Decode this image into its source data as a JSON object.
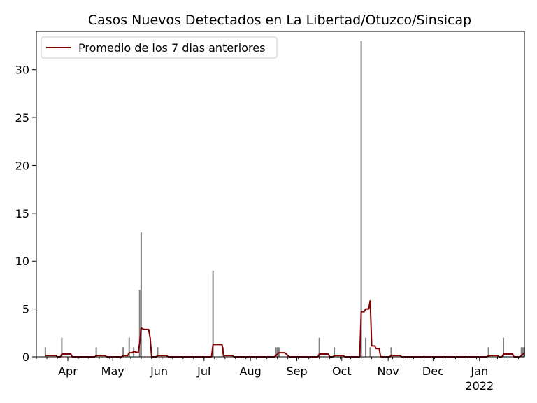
{
  "chart_data": {
    "type": "bar",
    "title": "Casos Nuevos Detectados en La Libertad/Otuzco/Sinsicap",
    "xlabel": "",
    "ylabel": "",
    "x_axis_type": "date",
    "xlim": [
      "2021-03-11",
      "2022-01-31"
    ],
    "ylim": [
      0,
      34
    ],
    "y_ticks": [
      0,
      5,
      10,
      15,
      20,
      25,
      30
    ],
    "x_ticks": [
      {
        "date": "2021-04-01",
        "label": "Apr"
      },
      {
        "date": "2021-05-01",
        "label": "May"
      },
      {
        "date": "2021-06-01",
        "label": "Jun"
      },
      {
        "date": "2021-07-01",
        "label": "Jul"
      },
      {
        "date": "2021-08-01",
        "label": "Aug"
      },
      {
        "date": "2021-09-01",
        "label": "Sep"
      },
      {
        "date": "2021-10-01",
        "label": "Oct"
      },
      {
        "date": "2021-11-01",
        "label": "Nov"
      },
      {
        "date": "2021-12-01",
        "label": "Dec"
      },
      {
        "date": "2022-01-01",
        "label": "Jan",
        "sublabel": "2022"
      }
    ],
    "grid": false,
    "legend": {
      "position": "top-left"
    },
    "colors": {
      "bars": "#808080",
      "line": "#800000"
    },
    "series": [
      {
        "type": "bar",
        "points": [
          [
            "2021-03-17",
            1
          ],
          [
            "2021-03-28",
            2
          ],
          [
            "2021-04-20",
            1
          ],
          [
            "2021-05-08",
            1
          ],
          [
            "2021-05-12",
            2
          ],
          [
            "2021-05-15",
            1
          ],
          [
            "2021-05-19",
            7
          ],
          [
            "2021-05-20",
            13
          ],
          [
            "2021-05-31",
            1
          ],
          [
            "2021-07-07",
            9
          ],
          [
            "2021-07-14",
            1
          ],
          [
            "2021-08-18",
            1
          ],
          [
            "2021-08-19",
            1
          ],
          [
            "2021-08-20",
            1
          ],
          [
            "2021-09-16",
            2
          ],
          [
            "2021-09-26",
            1
          ],
          [
            "2021-10-14",
            33
          ],
          [
            "2021-10-17",
            2
          ],
          [
            "2021-10-20",
            1
          ],
          [
            "2021-11-03",
            1
          ],
          [
            "2022-01-07",
            1
          ],
          [
            "2022-01-17",
            2
          ],
          [
            "2022-01-29",
            1
          ],
          [
            "2022-01-30",
            1
          ],
          [
            "2022-01-31",
            1
          ]
        ]
      },
      {
        "type": "line",
        "name": "Promedio de los 7 dias anteriores",
        "points": [
          [
            "2021-03-17",
            0.14
          ],
          [
            "2021-03-24",
            0.14
          ],
          [
            "2021-03-25",
            0
          ],
          [
            "2021-03-27",
            0
          ],
          [
            "2021-03-28",
            0.29
          ],
          [
            "2021-04-03",
            0.29
          ],
          [
            "2021-04-04",
            0
          ],
          [
            "2021-04-19",
            0
          ],
          [
            "2021-04-20",
            0.14
          ],
          [
            "2021-04-26",
            0.14
          ],
          [
            "2021-04-27",
            0
          ],
          [
            "2021-05-07",
            0
          ],
          [
            "2021-05-08",
            0.14
          ],
          [
            "2021-05-11",
            0.14
          ],
          [
            "2021-05-12",
            0.43
          ],
          [
            "2021-05-14",
            0.43
          ],
          [
            "2021-05-15",
            0.57
          ],
          [
            "2021-05-18",
            0.43
          ],
          [
            "2021-05-19",
            1.43
          ],
          [
            "2021-05-20",
            3.0
          ],
          [
            "2021-05-22",
            2.86
          ],
          [
            "2021-05-25",
            2.86
          ],
          [
            "2021-05-26",
            2.0
          ],
          [
            "2021-05-27",
            0
          ],
          [
            "2021-05-30",
            0
          ],
          [
            "2021-05-31",
            0.14
          ],
          [
            "2021-06-06",
            0.14
          ],
          [
            "2021-06-07",
            0
          ],
          [
            "2021-07-06",
            0
          ],
          [
            "2021-07-07",
            1.29
          ],
          [
            "2021-07-13",
            1.29
          ],
          [
            "2021-07-14",
            0.14
          ],
          [
            "2021-07-20",
            0.14
          ],
          [
            "2021-07-21",
            0
          ],
          [
            "2021-08-17",
            0
          ],
          [
            "2021-08-18",
            0.14
          ],
          [
            "2021-08-19",
            0.29
          ],
          [
            "2021-08-20",
            0.43
          ],
          [
            "2021-08-24",
            0.43
          ],
          [
            "2021-08-27",
            0
          ],
          [
            "2021-09-15",
            0
          ],
          [
            "2021-09-16",
            0.29
          ],
          [
            "2021-09-22",
            0.29
          ],
          [
            "2021-09-23",
            0
          ],
          [
            "2021-09-25",
            0
          ],
          [
            "2021-09-26",
            0.14
          ],
          [
            "2021-10-02",
            0.14
          ],
          [
            "2021-10-03",
            0
          ],
          [
            "2021-10-13",
            0
          ],
          [
            "2021-10-14",
            4.71
          ],
          [
            "2021-10-16",
            4.71
          ],
          [
            "2021-10-17",
            5.0
          ],
          [
            "2021-10-19",
            5.0
          ],
          [
            "2021-10-20",
            5.86
          ],
          [
            "2021-10-21",
            1.14
          ],
          [
            "2021-10-23",
            1.14
          ],
          [
            "2021-10-24",
            0.86
          ],
          [
            "2021-10-26",
            0.86
          ],
          [
            "2021-10-27",
            0
          ],
          [
            "2021-11-02",
            0
          ],
          [
            "2021-11-03",
            0.14
          ],
          [
            "2021-11-09",
            0.14
          ],
          [
            "2021-11-10",
            0
          ],
          [
            "2022-01-06",
            0
          ],
          [
            "2022-01-07",
            0.14
          ],
          [
            "2022-01-13",
            0.14
          ],
          [
            "2022-01-14",
            0
          ],
          [
            "2022-01-16",
            0
          ],
          [
            "2022-01-17",
            0.29
          ],
          [
            "2022-01-23",
            0.29
          ],
          [
            "2022-01-24",
            0
          ],
          [
            "2022-01-28",
            0
          ],
          [
            "2022-01-29",
            0.14
          ],
          [
            "2022-01-30",
            0.29
          ],
          [
            "2022-01-31",
            0.43
          ]
        ]
      }
    ]
  }
}
